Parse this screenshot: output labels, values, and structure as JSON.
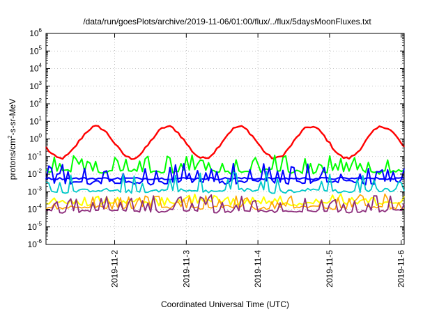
{
  "chart_data": {
    "type": "line",
    "title": "/data/run/goesPlots/archive/2019-11-06/01:00/flux/../flux/5daysMoonFluxes.txt",
    "xlabel": "Coordinated Universal Time (UTC)",
    "ylabel": {
      "prefix": "protons/cm",
      "sup": "2",
      "suffix": "-s-sr-MeV"
    },
    "y_scale": "log",
    "ylim_exp": [
      -6,
      6
    ],
    "y_ticks": [
      {
        "base": "10",
        "exp": "-6"
      },
      {
        "base": "10",
        "exp": "-5"
      },
      {
        "base": "10",
        "exp": "-4"
      },
      {
        "base": "10",
        "exp": "-3"
      },
      {
        "base": "10",
        "exp": "-2"
      },
      {
        "base": "10",
        "exp": "-1"
      },
      {
        "base": "10",
        "exp": "0"
      },
      {
        "base": "10",
        "exp": "1"
      },
      {
        "base": "10",
        "exp": "2"
      },
      {
        "base": "10",
        "exp": "3"
      },
      {
        "base": "10",
        "exp": "4"
      },
      {
        "base": "10",
        "exp": "5"
      },
      {
        "base": "10",
        "exp": "6"
      }
    ],
    "xlim": [
      "2019-11-01T01:00",
      "2019-11-06T01:00"
    ],
    "x_ticks": [
      "2019-11-2",
      "2019-11-3",
      "2019-11-4",
      "2019-11-5",
      "2019-11-6"
    ],
    "grid": true,
    "colors": {
      "red": "#ff0000",
      "green": "#00ff00",
      "blue": "#0000ff",
      "cyan": "#00c8c8",
      "yellow": "#ffff00",
      "orange": "#ffa500",
      "purple": "#8b2a7a"
    },
    "series": [
      {
        "color": "red",
        "base_log": -0.2,
        "amp": 0.9,
        "period_days": 1,
        "phase": 0.55,
        "noise": 0.08,
        "width": 2.4
      },
      {
        "color": "green",
        "base_log": -1.85,
        "amp": 0.05,
        "period_days": 1,
        "phase": 0.1,
        "noise": 0.1,
        "spikes": 0.95,
        "spike_rate": 0.35,
        "width": 2
      },
      {
        "color": "blue",
        "base_log": -2.45,
        "amp": 0.05,
        "period_days": 1,
        "phase": 0.3,
        "noise": 0.12,
        "spikes": 1.0,
        "spike_rate": 0.3,
        "width": 2
      },
      {
        "color": "blue",
        "base_log": -2.25,
        "amp": 0.0,
        "period_days": 1,
        "phase": 0.0,
        "noise": 0.06,
        "width": 2
      },
      {
        "color": "cyan",
        "base_log": -2.95,
        "amp": 0.05,
        "period_days": 1,
        "phase": 0.5,
        "noise": 0.1,
        "spikes": 1.1,
        "spike_rate": 0.2,
        "width": 1.8
      },
      {
        "color": "yellow",
        "base_log": -3.65,
        "amp": 0.05,
        "period_days": 1,
        "phase": 0.2,
        "noise": 0.1,
        "spikes": 0.4,
        "spike_rate": 0.35,
        "width": 2
      },
      {
        "color": "orange",
        "base_log": -3.9,
        "amp": 0.05,
        "period_days": 1,
        "phase": 0.7,
        "noise": 0.08,
        "spikes": 0.7,
        "spike_rate": 0.25,
        "width": 1.6
      },
      {
        "color": "purple",
        "base_log": -4.1,
        "amp": 0.05,
        "period_days": 1,
        "phase": 0.4,
        "noise": 0.08,
        "spikes": 0.9,
        "spike_rate": 0.35,
        "width": 1.8
      }
    ]
  }
}
